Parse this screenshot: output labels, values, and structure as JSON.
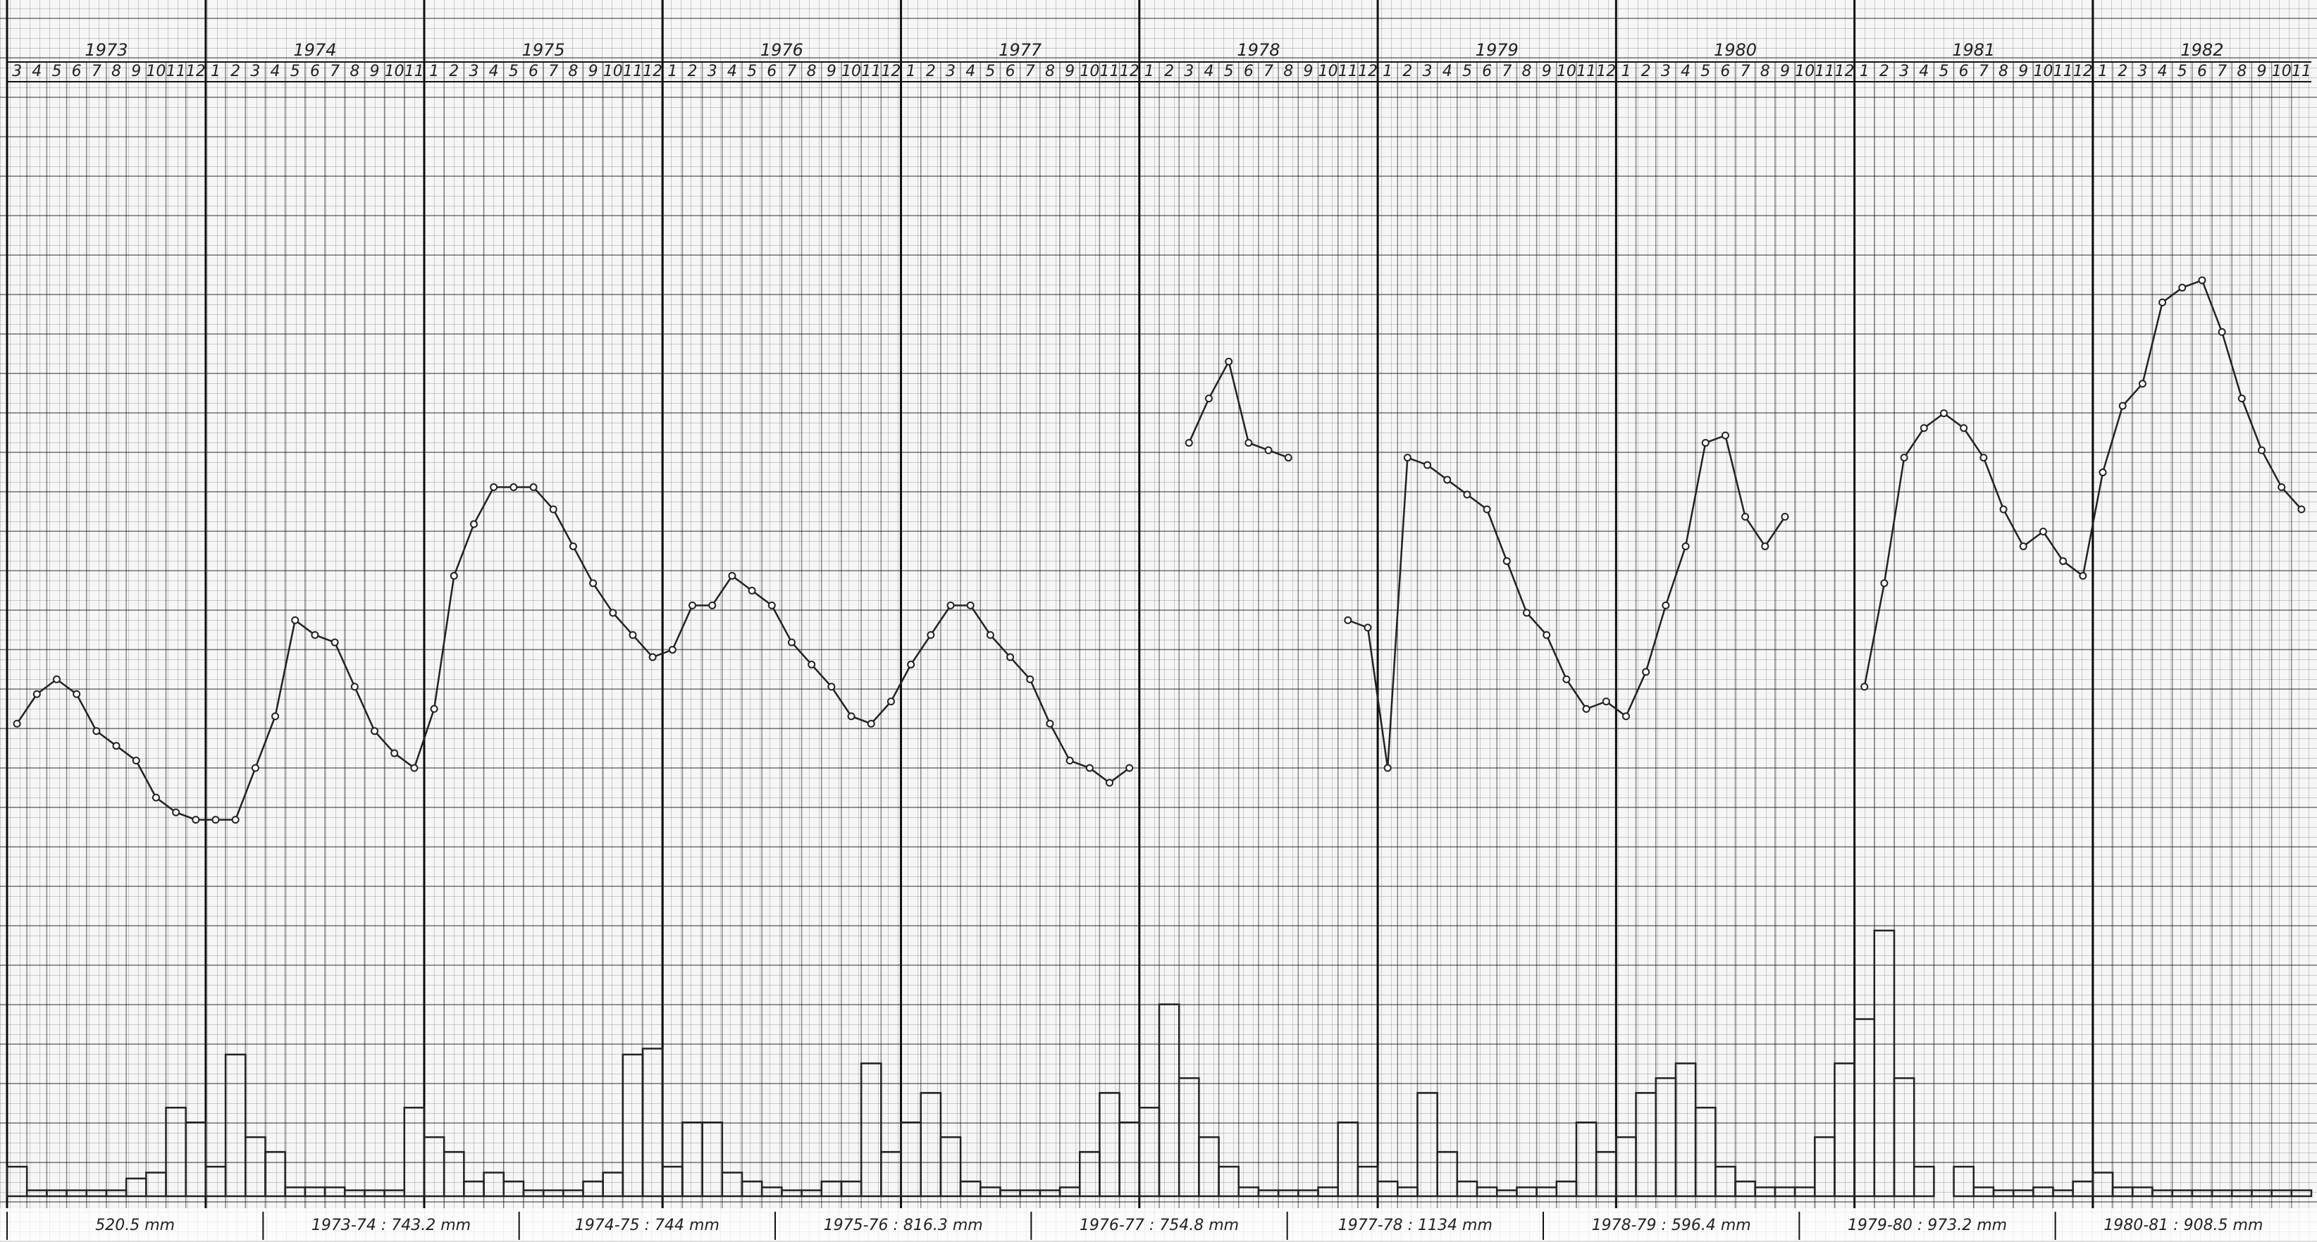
{
  "chart_data": {
    "type": "line",
    "ylim": [
      0,
      100
    ],
    "y2lim": [
      0,
      100
    ],
    "grid": true,
    "line_color": "#222222",
    "bar_color": "#222222",
    "periods": [
      {
        "year": "1973",
        "months": [
          3,
          4,
          5,
          6,
          7,
          8,
          9,
          10,
          11,
          12
        ],
        "level": [
          22,
          26,
          28,
          26,
          21,
          19,
          17,
          12,
          10,
          9
        ],
        "rainfall": [
          10,
          2,
          2,
          2,
          2,
          2,
          6,
          8,
          30,
          25
        ]
      },
      {
        "year": "1974",
        "months": [
          1,
          2,
          3,
          4,
          5,
          6,
          7,
          8,
          9,
          10,
          11
        ],
        "level": [
          9,
          9,
          16,
          23,
          36,
          34,
          33,
          27,
          21,
          18,
          16
        ],
        "rainfall": [
          10,
          48,
          20,
          15,
          3,
          3,
          3,
          2,
          2,
          2,
          30
        ]
      },
      {
        "year": "1975",
        "months": [
          1,
          2,
          3,
          4,
          5,
          6,
          7,
          8,
          9,
          10,
          11,
          12
        ],
        "level": [
          24,
          42,
          49,
          54,
          54,
          54,
          51,
          46,
          41,
          37,
          34,
          31
        ],
        "rainfall": [
          20,
          15,
          5,
          8,
          5,
          2,
          2,
          2,
          5,
          8,
          48,
          50
        ]
      },
      {
        "year": "1976",
        "months": [
          1,
          2,
          3,
          4,
          5,
          6,
          7,
          8,
          9,
          10,
          11,
          12
        ],
        "level": [
          32,
          38,
          38,
          42,
          40,
          38,
          33,
          30,
          27,
          23,
          22,
          25
        ],
        "rainfall": [
          10,
          25,
          25,
          8,
          5,
          3,
          2,
          2,
          5,
          5,
          45,
          15
        ]
      },
      {
        "year": "1977",
        "months": [
          1,
          2,
          3,
          4,
          5,
          6,
          7,
          8,
          9,
          10,
          11,
          12
        ],
        "level": [
          30,
          34,
          38,
          38,
          34,
          31,
          28,
          22,
          17,
          16,
          14,
          16
        ],
        "rainfall": [
          25,
          35,
          20,
          5,
          3,
          2,
          2,
          2,
          3,
          15,
          35,
          25
        ]
      },
      {
        "year": "1978",
        "months": [
          1,
          2,
          3,
          4,
          5,
          6,
          7,
          8,
          9,
          10,
          11,
          12
        ],
        "level": [
          null,
          null,
          60,
          66,
          71,
          60,
          59,
          58,
          null,
          null,
          36,
          35
        ],
        "rainfall": [
          30,
          65,
          40,
          20,
          10,
          3,
          2,
          2,
          2,
          3,
          25,
          10
        ]
      },
      {
        "year": "1979",
        "months": [
          1,
          2,
          3,
          4,
          5,
          6,
          7,
          8,
          9,
          10,
          11,
          12
        ],
        "level": [
          16,
          58,
          57,
          55,
          53,
          51,
          44,
          37,
          34,
          28,
          24,
          25
        ],
        "rainfall": [
          5,
          3,
          35,
          15,
          5,
          3,
          2,
          3,
          3,
          5,
          25,
          15
        ]
      },
      {
        "year": "1980",
        "months": [
          1,
          2,
          3,
          4,
          5,
          6,
          7,
          8,
          9,
          10,
          11,
          12
        ],
        "level": [
          23,
          29,
          38,
          46,
          60,
          61,
          50,
          46,
          50,
          null,
          null,
          null
        ],
        "rainfall": [
          20,
          35,
          40,
          45,
          30,
          10,
          5,
          3,
          3,
          3,
          20,
          45
        ]
      },
      {
        "year": "1981",
        "months": [
          1,
          2,
          3,
          4,
          5,
          6,
          7,
          8,
          9,
          10,
          11,
          12
        ],
        "level": [
          27,
          41,
          58,
          62,
          64,
          62,
          58,
          51,
          46,
          48,
          44,
          42
        ],
        "rainfall": [
          60,
          90,
          40,
          10,
          0,
          10,
          3,
          2,
          2,
          3,
          2,
          5
        ]
      },
      {
        "year": "1982",
        "months": [
          1,
          2,
          3,
          4,
          5,
          6,
          7,
          8,
          9,
          10,
          11
        ],
        "level": [
          56,
          65,
          68,
          79,
          81,
          82,
          75,
          66,
          59,
          54,
          51
        ],
        "rainfall": [
          8,
          3,
          3,
          2,
          2,
          2,
          2,
          2,
          2,
          2,
          2
        ]
      }
    ],
    "totals": [
      "520.5 mm",
      "1973-74 : 743.2 mm",
      "1974-75 : 744 mm",
      "1975-76 : 816.3 mm",
      "1976-77 : 754.8 mm",
      "1977-78 : 1134 mm",
      "1978-79 : 596.4 mm",
      "1979-80 : 973.2 mm",
      "1980-81 : 908.5 mm"
    ]
  }
}
